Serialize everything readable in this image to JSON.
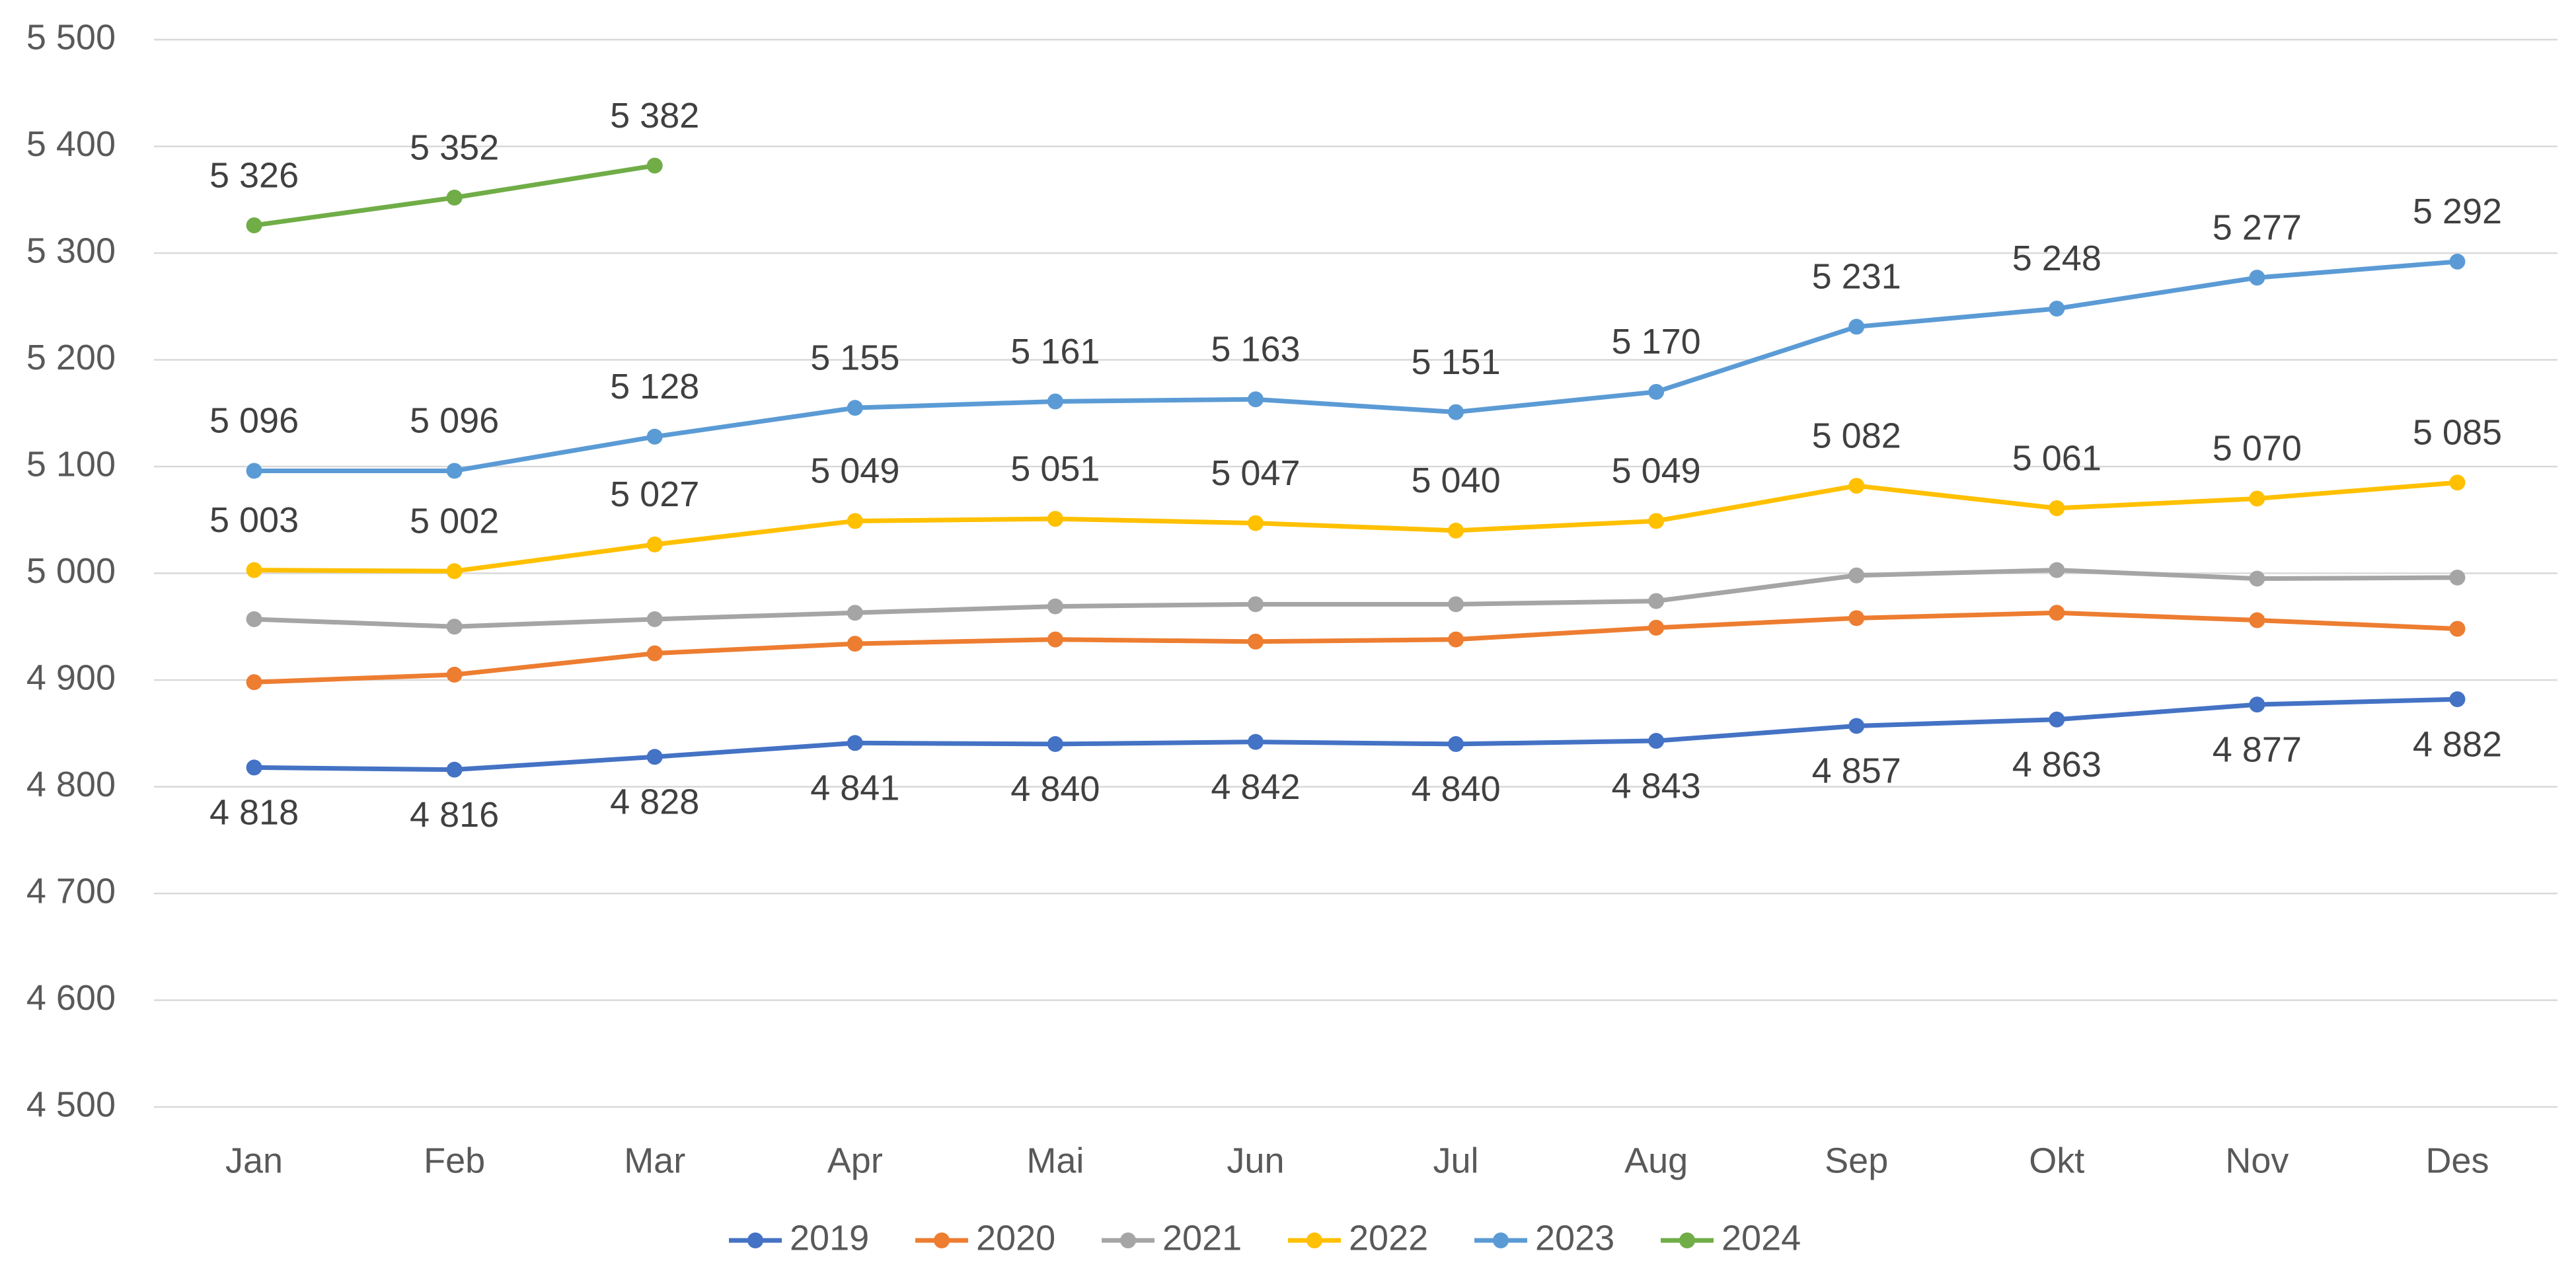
{
  "chart_data": {
    "type": "line",
    "categories": [
      "Jan",
      "Feb",
      "Mar",
      "Apr",
      "Mai",
      "Jun",
      "Jul",
      "Aug",
      "Sep",
      "Okt",
      "Nov",
      "Des"
    ],
    "series": [
      {
        "name": "2019",
        "color": "#4472c4",
        "values": [
          4818,
          4816,
          4828,
          4841,
          4840,
          4842,
          4840,
          4843,
          4857,
          4863,
          4877,
          4882
        ],
        "value_labels": [
          "4 818",
          "4 816",
          "4 828",
          "4 841",
          "4 840",
          "4 842",
          "4 840",
          "4 843",
          "4 857",
          "4 863",
          "4 877",
          "4 882"
        ]
      },
      {
        "name": "2020",
        "color": "#ed7d31",
        "values": [
          4898,
          4905,
          4925,
          4934,
          4938,
          4936,
          4938,
          4949,
          4958,
          4963,
          4956,
          4948
        ]
      },
      {
        "name": "2021",
        "color": "#a5a5a5",
        "values": [
          4957,
          4950,
          4957,
          4963,
          4969,
          4971,
          4971,
          4974,
          4998,
          5003,
          4995,
          4996
        ]
      },
      {
        "name": "2022",
        "color": "#ffc000",
        "values": [
          5003,
          5002,
          5027,
          5049,
          5051,
          5047,
          5040,
          5049,
          5082,
          5061,
          5070,
          5085
        ],
        "value_labels": [
          "5 003",
          "5 002",
          "5 027",
          "5 049",
          "5 051",
          "5 047",
          "5 040",
          "5 049",
          "5 082",
          "5 061",
          "5 070",
          "5 085"
        ]
      },
      {
        "name": "2023",
        "color": "#5b9bd5",
        "values": [
          5096,
          5096,
          5128,
          5155,
          5161,
          5163,
          5151,
          5170,
          5231,
          5248,
          5277,
          5292
        ],
        "value_labels": [
          "5 096",
          "5 096",
          "5 128",
          "5 155",
          "5 161",
          "5 163",
          "5 151",
          "5 170",
          "5 231",
          "5 248",
          "5 277",
          "5 292"
        ]
      },
      {
        "name": "2024",
        "color": "#70ad47",
        "values": [
          5326,
          5352,
          5382,
          null,
          null,
          null,
          null,
          null,
          null,
          null,
          null,
          null
        ],
        "value_labels": [
          "5 326",
          "5 352",
          "5 382",
          null,
          null,
          null,
          null,
          null,
          null,
          null,
          null,
          null
        ]
      }
    ],
    "ylim": [
      4500,
      5500
    ],
    "yticks": [
      {
        "value": 4500,
        "label": "4 500"
      },
      {
        "value": 4600,
        "label": "4 600"
      },
      {
        "value": 4700,
        "label": "4 700"
      },
      {
        "value": 4800,
        "label": "4 800"
      },
      {
        "value": 4900,
        "label": "4 900"
      },
      {
        "value": 5000,
        "label": "5 000"
      },
      {
        "value": 5100,
        "label": "5 100"
      },
      {
        "value": 5200,
        "label": "5 200"
      },
      {
        "value": 5300,
        "label": "5 300"
      },
      {
        "value": 5400,
        "label": "5 400"
      },
      {
        "value": 5500,
        "label": "5 500"
      }
    ],
    "grid": true,
    "legend": "bottom"
  }
}
